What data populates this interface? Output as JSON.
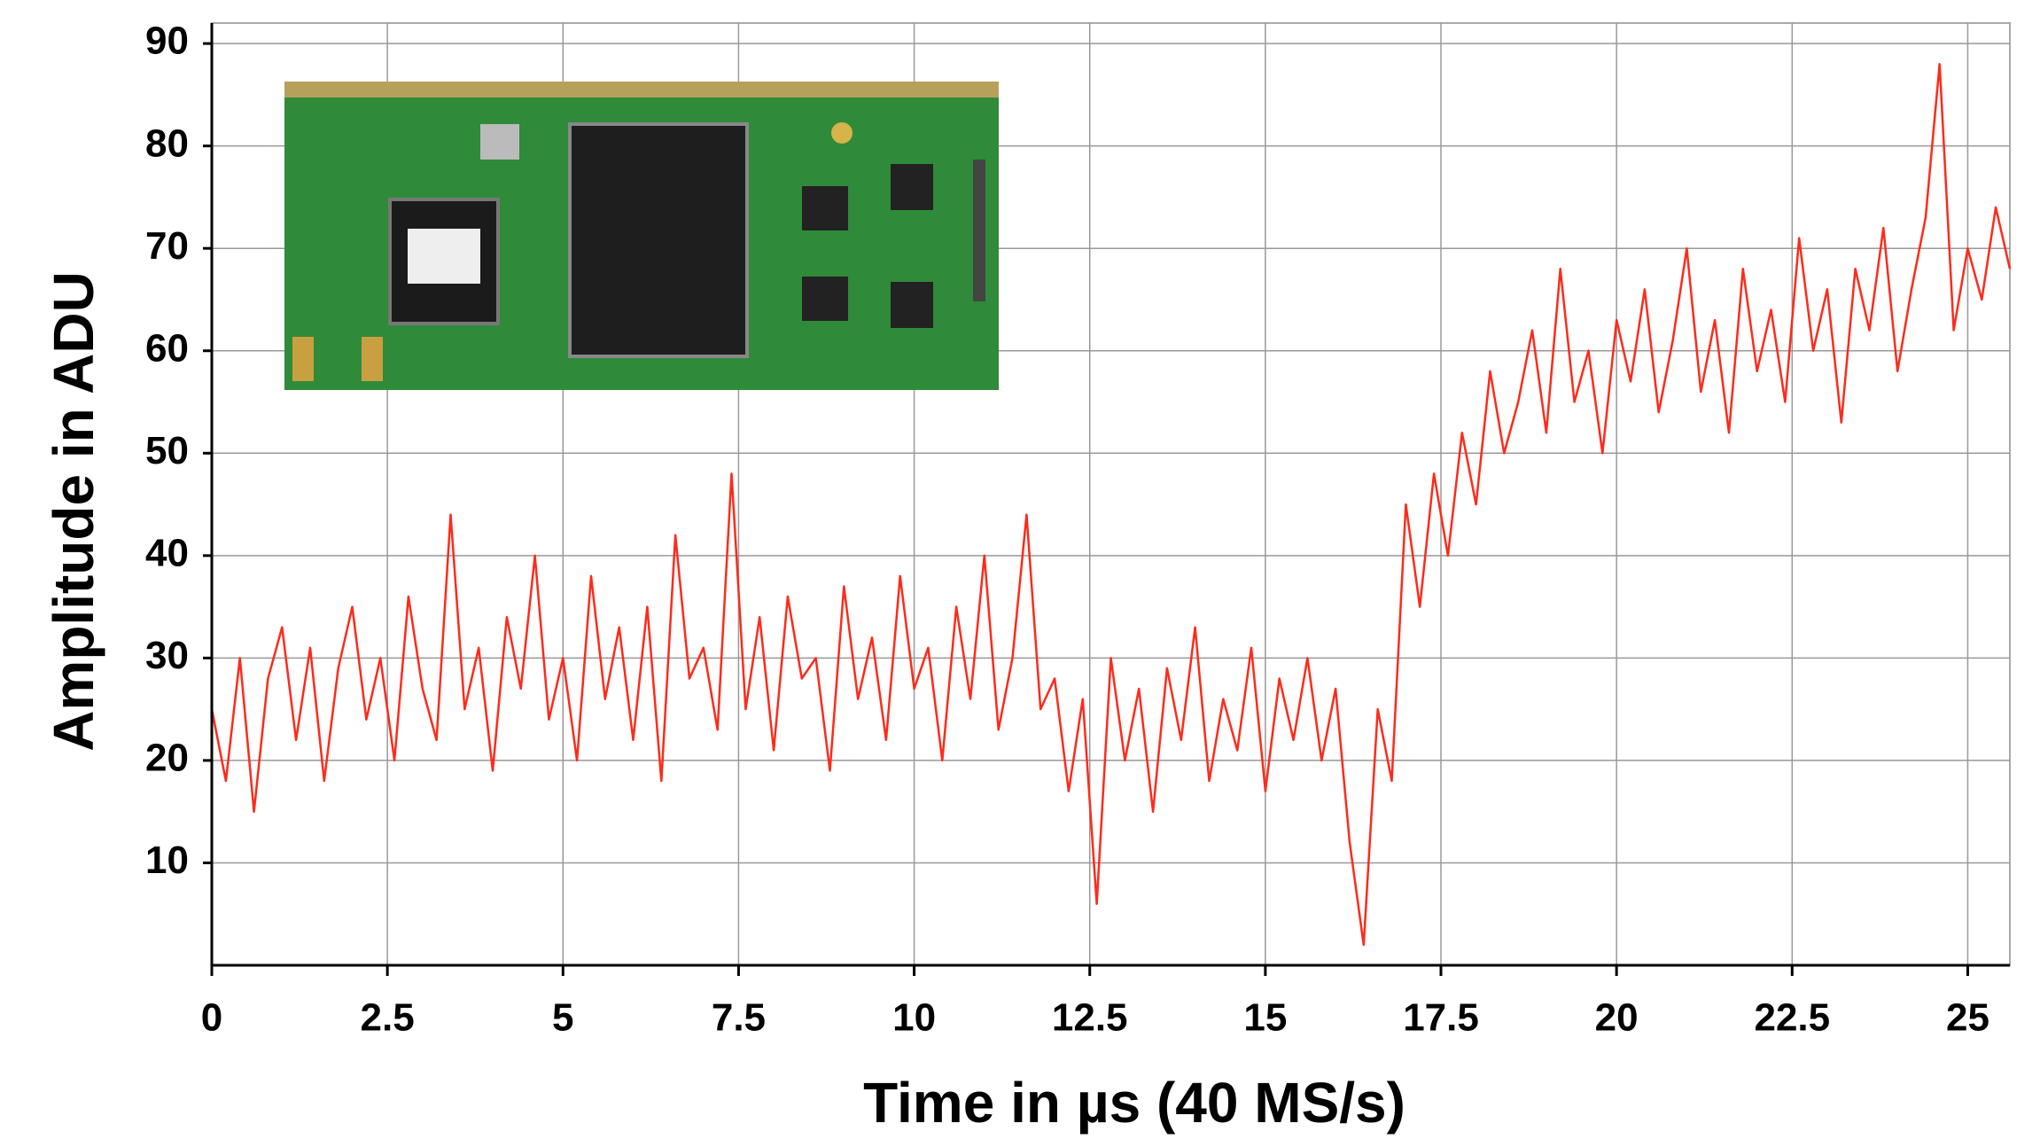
{
  "chart_data": {
    "type": "line",
    "x_label": "Time in µs (40 MS/s)",
    "y_label": "Amplitude in ADU",
    "xlim": [
      0,
      25.6
    ],
    "ylim": [
      0,
      92
    ],
    "xticks": [
      0,
      2.5,
      5,
      7.5,
      10,
      12.5,
      15,
      17.5,
      20,
      22.5,
      25
    ],
    "yticks": [
      10,
      20,
      30,
      40,
      50,
      60,
      70,
      80,
      90
    ],
    "grid": true,
    "x": [
      0,
      0.2,
      0.4,
      0.6,
      0.8,
      1,
      1.2,
      1.4,
      1.6,
      1.8,
      2,
      2.2,
      2.4,
      2.6,
      2.8,
      3,
      3.2,
      3.4,
      3.6,
      3.8,
      4,
      4.2,
      4.4,
      4.6,
      4.8,
      5,
      5.2,
      5.4,
      5.6,
      5.8,
      6,
      6.2,
      6.4,
      6.6,
      6.8,
      7,
      7.2,
      7.4,
      7.6,
      7.8,
      8,
      8.2,
      8.4,
      8.6,
      8.8,
      9,
      9.2,
      9.4,
      9.6,
      9.8,
      10,
      10.2,
      10.4,
      10.6,
      10.8,
      11,
      11.2,
      11.4,
      11.6,
      11.8,
      12,
      12.2,
      12.4,
      12.6,
      12.8,
      13,
      13.2,
      13.4,
      13.6,
      13.8,
      14,
      14.2,
      14.4,
      14.6,
      14.8,
      15,
      15.2,
      15.4,
      15.6,
      15.8,
      16,
      16.2,
      16.4,
      16.6,
      16.8,
      17,
      17.2,
      17.4,
      17.6,
      17.8,
      18,
      18.2,
      18.4,
      18.6,
      18.8,
      19,
      19.2,
      19.4,
      19.6,
      19.8,
      20,
      20.2,
      20.4,
      20.6,
      20.8,
      21,
      21.2,
      21.4,
      21.6,
      21.8,
      22,
      22.2,
      22.4,
      22.6,
      22.8,
      23,
      23.2,
      23.4,
      23.6,
      23.8,
      24,
      24.2,
      24.4,
      24.6,
      24.8,
      25,
      25.2,
      25.4,
      25.6
    ],
    "series": [
      {
        "color": "#ff2a1a",
        "values": [
          25,
          18,
          30,
          15,
          28,
          33,
          22,
          31,
          18,
          29,
          35,
          24,
          30,
          20,
          36,
          27,
          22,
          44,
          25,
          31,
          19,
          34,
          27,
          40,
          24,
          30,
          20,
          38,
          26,
          33,
          22,
          35,
          18,
          42,
          28,
          31,
          23,
          48,
          25,
          34,
          21,
          36,
          28,
          30,
          19,
          37,
          26,
          32,
          22,
          38,
          27,
          31,
          20,
          35,
          26,
          40,
          23,
          30,
          44,
          25,
          28,
          17,
          26,
          6,
          30,
          20,
          27,
          15,
          29,
          22,
          33,
          18,
          26,
          21,
          31,
          17,
          28,
          22,
          30,
          20,
          27,
          12,
          2,
          25,
          18,
          45,
          35,
          48,
          40,
          52,
          45,
          58,
          50,
          55,
          62,
          52,
          68,
          55,
          60,
          50,
          63,
          57,
          66,
          54,
          61,
          70,
          56,
          63,
          52,
          68,
          58,
          64,
          55,
          71,
          60,
          66,
          53,
          68,
          62,
          72,
          58,
          66,
          73,
          88,
          62,
          70,
          65,
          74,
          68
        ]
      }
    ]
  }
}
